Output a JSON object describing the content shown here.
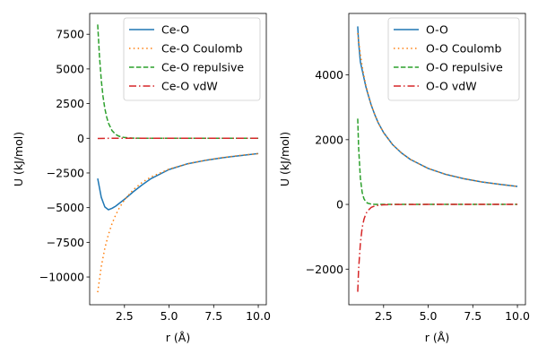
{
  "chart_data": [
    {
      "type": "line",
      "xlabel": "r (Å)",
      "ylabel": "U (kJ/mol)",
      "xlim": [
        0.55,
        10.45
      ],
      "ylim": [
        -12000,
        9000
      ],
      "xticks": [
        2.5,
        5.0,
        7.5,
        10.0
      ],
      "xtick_labels": [
        "2.5",
        "5.0",
        "7.5",
        "10.0"
      ],
      "yticks": [
        -10000,
        -7500,
        -5000,
        -2500,
        0,
        2500,
        5000,
        7500
      ],
      "ytick_labels": [
        "−10000",
        "−7500",
        "−5000",
        "−2500",
        "0",
        "2500",
        "5000",
        "7500"
      ],
      "legend_position": "top-right",
      "series": [
        {
          "name": "Ce-O",
          "color": "#1f77b4",
          "style": "solid",
          "x": [
            1.0,
            1.2,
            1.4,
            1.6,
            1.8,
            2.0,
            2.2,
            2.5,
            3.0,
            3.5,
            4.0,
            5.0,
            6.0,
            7.0,
            8.0,
            9.0,
            10.0
          ],
          "y": [
            -2900,
            -4250,
            -4950,
            -5150,
            -5050,
            -4900,
            -4700,
            -4400,
            -3850,
            -3350,
            -2900,
            -2250,
            -1850,
            -1600,
            -1400,
            -1250,
            -1100
          ]
        },
        {
          "name": "Ce-O Coulomb",
          "color": "#ff7f0e",
          "style": "dotted",
          "x": [
            1.0,
            1.2,
            1.4,
            1.6,
            1.8,
            2.0,
            2.2,
            2.5,
            3.0,
            3.5,
            4.0,
            5.0,
            6.0,
            7.0,
            8.0,
            9.0,
            10.0
          ],
          "y": [
            -11100,
            -9250,
            -7930,
            -6940,
            -6170,
            -5550,
            -5050,
            -4440,
            -3700,
            -3170,
            -2780,
            -2220,
            -1850,
            -1590,
            -1390,
            -1230,
            -1110
          ]
        },
        {
          "name": "Ce-O repulsive",
          "color": "#2ca02c",
          "style": "dashed",
          "x": [
            1.0,
            1.1,
            1.2,
            1.3,
            1.4,
            1.5,
            1.6,
            1.8,
            2.0,
            2.2,
            2.5,
            3.0,
            3.5,
            4.0,
            5.0,
            6.0,
            7.0,
            8.0,
            9.0,
            10.0
          ],
          "y": [
            8200,
            5900,
            4200,
            3000,
            2150,
            1550,
            1100,
            560,
            280,
            145,
            55,
            10,
            2,
            0,
            0,
            0,
            0,
            0,
            0,
            0
          ]
        },
        {
          "name": "Ce-O vdW",
          "color": "#d62728",
          "style": "dashdot",
          "x": [
            1.0,
            1.5,
            2.0,
            3.0,
            4.0,
            5.0,
            6.0,
            7.0,
            8.0,
            9.0,
            10.0
          ],
          "y": [
            -15,
            -2,
            0,
            0,
            0,
            0,
            0,
            0,
            0,
            0,
            0
          ]
        }
      ]
    },
    {
      "type": "line",
      "xlabel": "r (Å)",
      "ylabel": "U (kJ/mol)",
      "xlim": [
        0.55,
        10.45
      ],
      "ylim": [
        -3100,
        5900
      ],
      "xticks": [
        2.5,
        5.0,
        7.5,
        10.0
      ],
      "xtick_labels": [
        "2.5",
        "5.0",
        "7.5",
        "10.0"
      ],
      "yticks": [
        -2000,
        0,
        2000,
        4000
      ],
      "ytick_labels": [
        "−2000",
        "0",
        "2000",
        "4000"
      ],
      "legend_position": "top-right",
      "series": [
        {
          "name": "O-O",
          "color": "#1f77b4",
          "style": "solid",
          "x": [
            1.05,
            1.1,
            1.2,
            1.3,
            1.4,
            1.5,
            1.6,
            1.8,
            2.0,
            2.2,
            2.5,
            3.0,
            3.5,
            4.0,
            5.0,
            6.0,
            7.0,
            8.0,
            9.0,
            10.0
          ],
          "y": [
            5500,
            5000,
            4400,
            4150,
            3900,
            3650,
            3450,
            3080,
            2780,
            2520,
            2220,
            1850,
            1590,
            1390,
            1110,
            925,
            795,
            695,
            620,
            555
          ]
        },
        {
          "name": "O-O Coulomb",
          "color": "#ff7f0e",
          "style": "dotted",
          "x": [
            1.05,
            1.1,
            1.2,
            1.3,
            1.4,
            1.5,
            1.6,
            1.8,
            2.0,
            2.2,
            2.5,
            3.0,
            3.5,
            4.0,
            5.0,
            6.0,
            7.0,
            8.0,
            9.0,
            10.0
          ],
          "y": [
            5290,
            5050,
            4630,
            4270,
            3970,
            3700,
            3470,
            3090,
            2780,
            2520,
            2220,
            1850,
            1590,
            1390,
            1110,
            925,
            795,
            695,
            620,
            555
          ]
        },
        {
          "name": "O-O repulsive",
          "color": "#2ca02c",
          "style": "dashed",
          "x": [
            1.05,
            1.1,
            1.2,
            1.3,
            1.4,
            1.5,
            1.6,
            1.8,
            2.0,
            2.5,
            3.0,
            4.0,
            5.0,
            6.0,
            7.0,
            8.0,
            9.0,
            10.0
          ],
          "y": [
            2650,
            1750,
            800,
            370,
            175,
            85,
            40,
            10,
            2,
            0,
            0,
            0,
            0,
            0,
            0,
            0,
            0,
            0
          ]
        },
        {
          "name": "O-O vdW",
          "color": "#d62728",
          "style": "dashdot",
          "x": [
            1.05,
            1.1,
            1.2,
            1.3,
            1.4,
            1.5,
            1.6,
            1.8,
            2.0,
            2.2,
            2.5,
            3.0,
            4.0,
            5.0,
            6.0,
            7.0,
            8.0,
            9.0,
            10.0
          ],
          "y": [
            -2700,
            -2000,
            -1200,
            -720,
            -460,
            -300,
            -200,
            -95,
            -50,
            -28,
            -13,
            -4,
            -1,
            0,
            0,
            0,
            0,
            0,
            0
          ]
        }
      ]
    }
  ]
}
